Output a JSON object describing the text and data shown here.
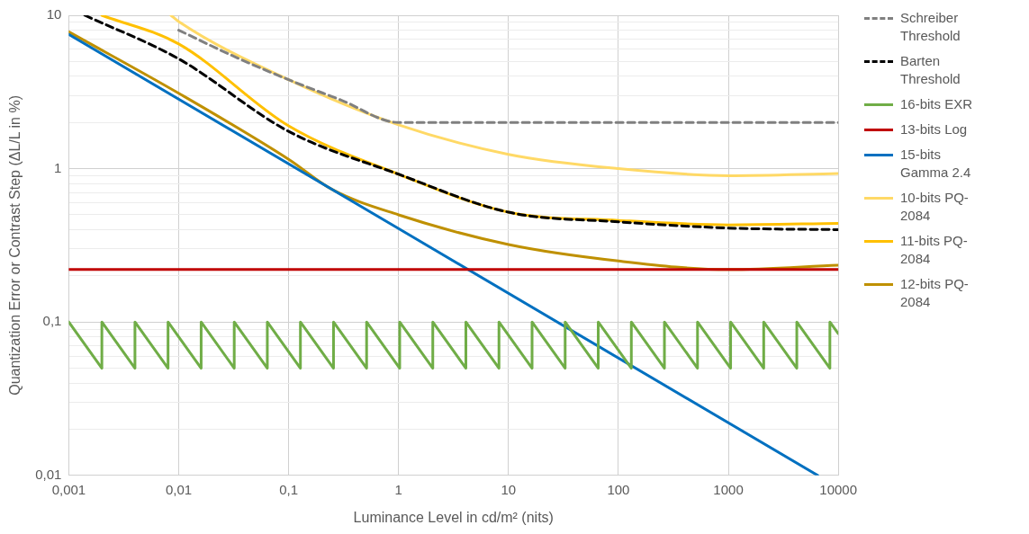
{
  "chart_data": {
    "type": "line",
    "xlabel": "Luminance Level in cd/m² (nits)",
    "ylabel": "Quantization Error or Contrast Step (ΔL/L in %)",
    "log": "xy",
    "xlim": [
      0.001,
      10000
    ],
    "ylim": [
      0.01,
      10
    ],
    "xticks": [
      {
        "value": 0.001,
        "label": "0,001"
      },
      {
        "value": 0.01,
        "label": "0,01"
      },
      {
        "value": 0.1,
        "label": "0,1"
      },
      1,
      10,
      100,
      1000,
      10000
    ],
    "yticks": [
      {
        "value": 0.01,
        "label": "0,01"
      },
      {
        "value": 0.02,
        "label": null
      },
      {
        "value": 0.03,
        "label": null
      },
      {
        "value": 0.04,
        "label": null
      },
      {
        "value": 0.05,
        "label": null
      },
      {
        "value": 0.06,
        "label": null
      },
      {
        "value": 0.07,
        "label": null
      },
      {
        "value": 0.08,
        "label": null
      },
      {
        "value": 0.09,
        "label": null
      },
      {
        "value": 0.1,
        "label": "0,1"
      },
      {
        "value": 0.2,
        "label": null
      },
      {
        "value": 0.3,
        "label": null
      },
      {
        "value": 0.4,
        "label": null
      },
      {
        "value": 0.5,
        "label": null
      },
      {
        "value": 0.6,
        "label": null
      },
      {
        "value": 0.7,
        "label": null
      },
      {
        "value": 0.8,
        "label": null
      },
      {
        "value": 0.9,
        "label": null
      },
      1,
      {
        "value": 2,
        "label": null
      },
      {
        "value": 3,
        "label": null
      },
      {
        "value": 4,
        "label": null
      },
      {
        "value": 5,
        "label": null
      },
      {
        "value": 6,
        "label": null
      },
      {
        "value": 7,
        "label": null
      },
      {
        "value": 8,
        "label": null
      },
      {
        "value": 9,
        "label": null
      },
      10
    ],
    "grid": true,
    "legend": "right",
    "marker": "none",
    "series": [
      {
        "name": "Schreiber Threshold",
        "color": "#808080",
        "line_style": "dashed",
        "x": [
          0.01,
          0.03,
          0.1,
          0.3,
          1,
          10000
        ],
        "values": [
          8,
          5.5,
          3.8,
          2.8,
          2,
          2
        ]
      },
      {
        "name": "Barten Threshold",
        "color": "#000000",
        "line_style": "dashed",
        "x": [
          0.0014,
          0.01,
          0.1,
          1,
          10,
          100,
          1000,
          10000
        ],
        "values": [
          10,
          5.2,
          1.75,
          0.92,
          0.52,
          0.45,
          0.41,
          0.4
        ]
      },
      {
        "name": "16-bits EXR",
        "color": "#70ad47",
        "x": [
          0.001,
          0.002,
          0.002,
          0.004,
          0.004,
          0.008,
          0.008,
          0.016,
          0.016,
          0.032,
          0.032,
          0.064,
          0.064,
          0.128,
          0.128,
          0.256,
          0.256,
          0.512,
          0.512,
          1.024,
          1.024,
          2.048,
          2.048,
          4.096,
          4.096,
          8.192,
          8.192,
          16.384,
          16.384,
          32.768,
          32.768,
          65.536,
          65.536,
          131.07,
          131.07,
          262.14,
          262.14,
          524.29,
          524.29,
          1048.6,
          1048.6,
          2097.2,
          2097.2,
          4194.3,
          4194.3,
          8388.6,
          8388.6,
          10000
        ],
        "values": [
          0.1,
          0.05,
          0.1,
          0.05,
          0.1,
          0.05,
          0.1,
          0.05,
          0.1,
          0.05,
          0.1,
          0.05,
          0.1,
          0.05,
          0.1,
          0.05,
          0.1,
          0.05,
          0.1,
          0.05,
          0.1,
          0.05,
          0.1,
          0.05,
          0.1,
          0.05,
          0.1,
          0.05,
          0.1,
          0.05,
          0.1,
          0.05,
          0.1,
          0.05,
          0.1,
          0.05,
          0.1,
          0.05,
          0.1,
          0.05,
          0.1,
          0.05,
          0.1,
          0.05,
          0.1,
          0.05,
          0.1,
          0.084
        ]
      },
      {
        "name": "13-bits Log",
        "color": "#c00000",
        "x": [
          0.001,
          10000
        ],
        "values": [
          0.22,
          0.22
        ]
      },
      {
        "name": "15-bits Gamma 2.4",
        "color": "#0070c0",
        "x": [
          0.001,
          6500
        ],
        "values": [
          7.5,
          0.01
        ]
      },
      {
        "name": "10-bits PQ-2084",
        "color": "#ffd966",
        "x": [
          0.0085,
          0.01,
          0.1,
          1,
          10,
          100,
          1000,
          10000
        ],
        "values": [
          10,
          9.1,
          3.8,
          1.93,
          1.24,
          1.0,
          0.9,
          0.93
        ]
      },
      {
        "name": "11-bits PQ-2084",
        "color": "#ffc000",
        "x": [
          0.002,
          0.01,
          0.1,
          1,
          10,
          100,
          1000,
          10000
        ],
        "values": [
          10,
          6.5,
          1.9,
          0.92,
          0.52,
          0.46,
          0.43,
          0.44
        ]
      },
      {
        "name": "12-bits PQ-2084",
        "color": "#bf9000",
        "x": [
          0.001,
          0.01,
          0.1,
          0.25,
          1,
          10,
          100,
          1000,
          10000
        ],
        "values": [
          7.8,
          3.1,
          1.15,
          0.73,
          0.5,
          0.32,
          0.25,
          0.22,
          0.235
        ]
      }
    ]
  }
}
